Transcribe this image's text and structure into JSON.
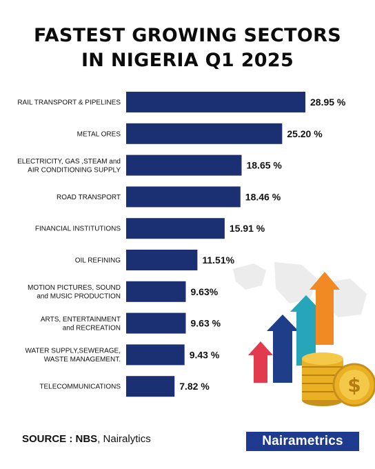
{
  "title": "FASTEST GROWING SECTORS IN NIGERIA Q1 2025",
  "title_lines": [
    "FASTEST GROWING SECTORS",
    "IN NIGERIA Q1 2025"
  ],
  "footer": {
    "source_label": "SOURCE :",
    "source_bold": "NBS",
    "source_rest": ", Nairalytics",
    "brand": "Nairametrics"
  },
  "colors": {
    "bar": "#1b2f73",
    "brand": "#1f3b8f",
    "arrow_red": "#e23b4e",
    "arrow_navy": "#1e3e8a",
    "arrow_teal": "#26a6b8",
    "arrow_orange": "#f28a24",
    "coin": "#e8b022"
  },
  "decoration_icons": [
    "growth-arrows-icon",
    "coin-stack-icon",
    "dollar-coin-icon",
    "world-map-icon"
  ],
  "chart_data": {
    "type": "bar",
    "orientation": "horizontal",
    "title": "FASTEST GROWING SECTORS IN NIGERIA Q1 2025",
    "categories": [
      [
        "RAIL TRANSPORT & PIPELINES"
      ],
      [
        "METAL ORES"
      ],
      [
        "ELECTRICITY, GAS ,STEAM and",
        "AIR CONDITIONING SUPPLY"
      ],
      [
        "ROAD TRANSPORT"
      ],
      [
        "FINANCIAL INSTITUTIONS"
      ],
      [
        "OIL REFINING"
      ],
      [
        "MOTION PICTURES, SOUND",
        "and MUSIC PRODUCTION"
      ],
      [
        "ARTS, ENTERTAINMENT",
        "and RECREATION"
      ],
      [
        "WATER SUPPLY,SEWERAGE,",
        "WASTE MANAGEMENT."
      ],
      [
        "TELECOMMUNICATIONS"
      ]
    ],
    "values": [
      28.95,
      25.2,
      18.65,
      18.46,
      15.91,
      11.51,
      9.63,
      9.63,
      9.43,
      7.82
    ],
    "value_labels": [
      "28.95 %",
      "25.20 %",
      "18.65 %",
      "18.46 %",
      "15.91 %",
      "11.51%",
      "9.63%",
      "9.63 %",
      "9.43 %",
      "7.82 %"
    ],
    "xlim": [
      0,
      28.95
    ],
    "grid": false,
    "legend": "none"
  }
}
